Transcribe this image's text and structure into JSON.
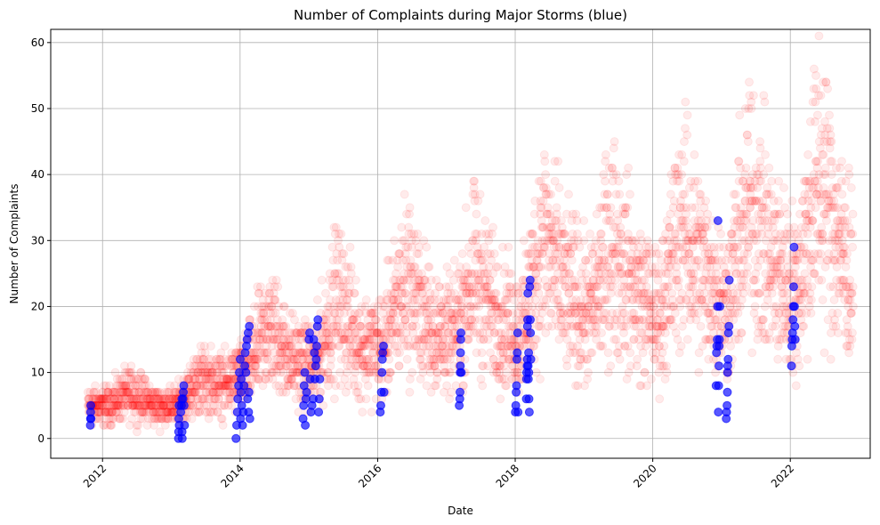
{
  "chart_data": {
    "type": "scatter",
    "title": "Number of Complaints during Major Storms (blue)",
    "xlabel": "Date",
    "ylabel": "Number of Complaints",
    "xlim": [
      "2011-04-01",
      "2023-03-01"
    ],
    "ylim": [
      -3,
      62
    ],
    "x_ticks": [
      2012,
      2014,
      2016,
      2018,
      2020,
      2022
    ],
    "x_tick_labels": [
      "2012",
      "2014",
      "2016",
      "2018",
      "2020",
      "2022"
    ],
    "y_ticks": [
      0,
      10,
      20,
      30,
      40,
      50,
      60
    ],
    "y_tick_labels": [
      "0",
      "10",
      "20",
      "30",
      "40",
      "50",
      "60"
    ],
    "grid": true,
    "series": [
      {
        "role": "daily complaints",
        "color": "#ff0000",
        "opacity": 0.08,
        "trend": [
          [
            "2011-10-15",
            5
          ],
          [
            "2012-02-01",
            5
          ],
          [
            "2012-06-01",
            7
          ],
          [
            "2012-10-01",
            5
          ],
          [
            "2013-02-01",
            5
          ],
          [
            "2013-06-01",
            9
          ],
          [
            "2013-10-01",
            8
          ],
          [
            "2014-02-01",
            10
          ],
          [
            "2014-06-01",
            17
          ],
          [
            "2014-10-01",
            12
          ],
          [
            "2015-02-01",
            11
          ],
          [
            "2015-06-01",
            21
          ],
          [
            "2015-10-01",
            14
          ],
          [
            "2016-02-01",
            14
          ],
          [
            "2016-06-01",
            24
          ],
          [
            "2016-10-01",
            17
          ],
          [
            "2017-02-01",
            15
          ],
          [
            "2017-06-01",
            25
          ],
          [
            "2017-10-01",
            18
          ],
          [
            "2018-02-01",
            16
          ],
          [
            "2018-06-01",
            30
          ],
          [
            "2018-10-01",
            22
          ],
          [
            "2019-02-01",
            19
          ],
          [
            "2019-06-01",
            30
          ],
          [
            "2019-10-01",
            22
          ],
          [
            "2020-02-01",
            18
          ],
          [
            "2020-06-01",
            32
          ],
          [
            "2020-10-01",
            25
          ],
          [
            "2021-02-01",
            20
          ],
          [
            "2021-06-01",
            36
          ],
          [
            "2021-10-01",
            26
          ],
          [
            "2022-02-01",
            22
          ],
          [
            "2022-06-01",
            40
          ],
          [
            "2022-10-01",
            28
          ],
          [
            "2022-12-01",
            24
          ]
        ]
      },
      {
        "role": "major storms",
        "color": "#0000ff",
        "opacity": 0.65,
        "points": [
          [
            "2011-10-28",
            2
          ],
          [
            "2011-10-29",
            3
          ],
          [
            "2011-10-30",
            4
          ],
          [
            "2011-10-31",
            5
          ],
          [
            "2011-11-01",
            3
          ],
          [
            "2013-02-08",
            0
          ],
          [
            "2013-02-09",
            1
          ],
          [
            "2013-02-10",
            3
          ],
          [
            "2013-02-11",
            5
          ],
          [
            "2013-02-12",
            2
          ],
          [
            "2013-02-20",
            4
          ],
          [
            "2013-02-24",
            5
          ],
          [
            "2013-02-26",
            6
          ],
          [
            "2013-02-27",
            1
          ],
          [
            "2013-02-28",
            0
          ],
          [
            "2013-03-04",
            6
          ],
          [
            "2013-03-06",
            7
          ],
          [
            "2013-03-08",
            8
          ],
          [
            "2013-03-10",
            5
          ],
          [
            "2013-03-12",
            2
          ],
          [
            "2013-12-10",
            0
          ],
          [
            "2013-12-14",
            2
          ],
          [
            "2013-12-17",
            4
          ],
          [
            "2013-12-20",
            6
          ],
          [
            "2013-12-24",
            8
          ],
          [
            "2013-12-28",
            10
          ],
          [
            "2014-01-02",
            12
          ],
          [
            "2014-01-03",
            3
          ],
          [
            "2014-01-05",
            7
          ],
          [
            "2014-01-07",
            9
          ],
          [
            "2014-01-10",
            5
          ],
          [
            "2014-01-14",
            2
          ],
          [
            "2014-01-18",
            4
          ],
          [
            "2014-01-22",
            8
          ],
          [
            "2014-01-26",
            11
          ],
          [
            "2014-01-28",
            13
          ],
          [
            "2014-02-01",
            10
          ],
          [
            "2014-02-04",
            14
          ],
          [
            "2014-02-07",
            15
          ],
          [
            "2014-02-10",
            6
          ],
          [
            "2014-02-13",
            16
          ],
          [
            "2014-02-15",
            4
          ],
          [
            "2014-02-17",
            7
          ],
          [
            "2014-02-19",
            17
          ],
          [
            "2014-02-22",
            3
          ],
          [
            "2014-12-01",
            3
          ],
          [
            "2014-12-04",
            5
          ],
          [
            "2014-12-07",
            8
          ],
          [
            "2014-12-10",
            10
          ],
          [
            "2014-12-13",
            2
          ],
          [
            "2014-12-16",
            6
          ],
          [
            "2014-12-20",
            7
          ],
          [
            "2015-01-02",
            15
          ],
          [
            "2015-01-05",
            16
          ],
          [
            "2015-01-08",
            9
          ],
          [
            "2015-01-12",
            4
          ],
          [
            "2015-01-18",
            5
          ],
          [
            "2015-01-24",
            6
          ],
          [
            "2015-01-27",
            15
          ],
          [
            "2015-01-30",
            13
          ],
          [
            "2015-02-02",
            9
          ],
          [
            "2015-02-06",
            11
          ],
          [
            "2015-02-09",
            12
          ],
          [
            "2015-02-12",
            14
          ],
          [
            "2015-02-15",
            17
          ],
          [
            "2015-02-18",
            18
          ],
          [
            "2015-02-22",
            4
          ],
          [
            "2015-02-25",
            6
          ],
          [
            "2015-02-28",
            9
          ],
          [
            "2016-01-15",
            4
          ],
          [
            "2016-01-18",
            5
          ],
          [
            "2016-01-21",
            7
          ],
          [
            "2016-01-24",
            10
          ],
          [
            "2016-01-26",
            12
          ],
          [
            "2016-01-28",
            13
          ],
          [
            "2016-02-01",
            14
          ],
          [
            "2016-02-04",
            7
          ],
          [
            "2017-03-10",
            5
          ],
          [
            "2017-03-13",
            6
          ],
          [
            "2017-03-14",
            7
          ],
          [
            "2017-03-15",
            10
          ],
          [
            "2017-03-16",
            11
          ],
          [
            "2017-03-17",
            13
          ],
          [
            "2017-03-18",
            15
          ],
          [
            "2017-03-19",
            16
          ],
          [
            "2017-03-21",
            10
          ],
          [
            "2018-01-02",
            4
          ],
          [
            "2018-01-04",
            5
          ],
          [
            "2018-01-06",
            7
          ],
          [
            "2018-01-08",
            8
          ],
          [
            "2018-01-10",
            12
          ],
          [
            "2018-01-12",
            13
          ],
          [
            "2018-01-14",
            16
          ],
          [
            "2018-01-16",
            4
          ],
          [
            "2018-03-01",
            6
          ],
          [
            "2018-03-02",
            9
          ],
          [
            "2018-03-03",
            10
          ],
          [
            "2018-03-05",
            11
          ],
          [
            "2018-03-06",
            12
          ],
          [
            "2018-03-07",
            17
          ],
          [
            "2018-03-08",
            18
          ],
          [
            "2018-03-09",
            22
          ],
          [
            "2018-03-11",
            11
          ],
          [
            "2018-03-12",
            9
          ],
          [
            "2018-03-13",
            13
          ],
          [
            "2018-03-14",
            10
          ],
          [
            "2018-03-15",
            6
          ],
          [
            "2018-03-17",
            4
          ],
          [
            "2018-03-19",
            23
          ],
          [
            "2018-03-21",
            24
          ],
          [
            "2018-03-22",
            18
          ],
          [
            "2018-03-23",
            16
          ],
          [
            "2018-03-25",
            12
          ],
          [
            "2020-12-03",
            8
          ],
          [
            "2020-12-05",
            13
          ],
          [
            "2020-12-07",
            14
          ],
          [
            "2020-12-09",
            15
          ],
          [
            "2020-12-11",
            20
          ],
          [
            "2020-12-13",
            33
          ],
          [
            "2020-12-15",
            4
          ],
          [
            "2020-12-17",
            8
          ],
          [
            "2020-12-18",
            11
          ],
          [
            "2020-12-19",
            14
          ],
          [
            "2020-12-21",
            15
          ],
          [
            "2020-12-23",
            20
          ],
          [
            "2021-01-26",
            3
          ],
          [
            "2021-01-28",
            4
          ],
          [
            "2021-01-30",
            5
          ],
          [
            "2021-02-01",
            7
          ],
          [
            "2021-02-02",
            10
          ],
          [
            "2021-02-03",
            11
          ],
          [
            "2021-02-05",
            12
          ],
          [
            "2021-02-07",
            16
          ],
          [
            "2021-02-09",
            17
          ],
          [
            "2021-02-11",
            24
          ],
          [
            "2022-01-07",
            11
          ],
          [
            "2022-01-09",
            14
          ],
          [
            "2022-01-11",
            15
          ],
          [
            "2022-01-13",
            16
          ],
          [
            "2022-01-15",
            18
          ],
          [
            "2022-01-17",
            20
          ],
          [
            "2022-01-19",
            23
          ],
          [
            "2022-01-21",
            29
          ],
          [
            "2022-01-23",
            20
          ],
          [
            "2022-01-25",
            17
          ],
          [
            "2022-01-27",
            15
          ]
        ]
      }
    ]
  }
}
